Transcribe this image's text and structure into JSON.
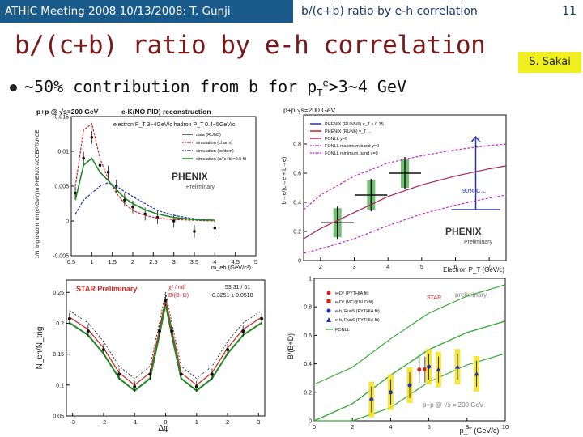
{
  "header": {
    "left": "ATHIC Meeting 2008 10/13/2008: T. Gunji",
    "center": "b/(c+b) ratio by e-h correlation",
    "page": "11"
  },
  "slide": {
    "title": "b/(c+b) ratio by e-h correlation",
    "author": "S. Sakai",
    "bullet": {
      "pre": "~50% contribution from b for p",
      "sub": "T",
      "sup": "e",
      "post": ">3~4 GeV"
    }
  },
  "colors": {
    "header_bg": "#1a5a8a",
    "title": "#7a1a1a",
    "author_bg": "#f0f020"
  },
  "panels": {
    "p1": {
      "header_left": "p+p @ √s=200 GeV",
      "header_right": "e-K(NO PID) reconstruction",
      "subtitle": "electron P_T 3~4GeV/c hadron P_T 0.4~5GeV/c",
      "legend": [
        "data (RUN5)",
        "simulation (charm)",
        "simulation (bottom)",
        "simulation (b/(c+b)=0.5 fit"
      ],
      "ylabel": "1/N_trig dN/dm_eh (c²/GeV) in PHENIX ACCEPTANCE",
      "xlabel": "m_eh (GeV/c²)",
      "logo": "PHENIX",
      "logo_sub": "Preliminary"
    },
    "p2": {
      "header": "p+p   √s=200 GeV",
      "legend": [
        "PHENIX (RUN5/6)  γ_T < 0.35",
        "PHENIX (RUN6) γ_T ...",
        "FONLL y=0",
        "FONLL maximum band y=0",
        "FONLL minimum band y=0"
      ],
      "ylabel": "b→e/(c→e + b→e)",
      "xlabel": "Electron P_T (GeV/c)",
      "annotation": "90% C.L",
      "logo": "PHENIX",
      "logo_sub": "Preliminary"
    },
    "p3": {
      "title": "STAR Preliminary",
      "stats": [
        {
          "label": "χ² / ndf",
          "value": "53.31 / 61"
        },
        {
          "label": "B/(B+D)",
          "value": "0.3251 ± 0.0518"
        }
      ],
      "ylabel": "N_ch/N_trig",
      "xlabel": "Δφ"
    },
    "p4": {
      "logo": "STAR",
      "logo_note": "preliminary",
      "legend": [
        "e-D⁰ (PYTHIA fit)",
        "e-D⁰ (MC@NLO fit)",
        "e-h, Run5 (PYTHIA fit)",
        "e-h, Run6 (PYTHIA fit)",
        "FONLL"
      ],
      "ylabel": "B/(B+D)",
      "xlabel": "p_T (GeV/c)",
      "footer": "p+p @ √s = 200 GeV"
    }
  },
  "chart_data": [
    {
      "type": "line",
      "title": "e-K(NO PID) reconstruction",
      "xlabel": "m_eh (GeV/c²)",
      "ylabel": "1/N_trig dN/dm_eh",
      "xlim": [
        0.5,
        5
      ],
      "ylim": [
        -0.005,
        0.015
      ],
      "x_ticks": [
        "0.5",
        "1",
        "1.5",
        "2",
        "2.5",
        "3",
        "3.5",
        "4",
        "4.5",
        "5"
      ],
      "y_ticks": [
        "-0.005",
        "0",
        "0.005",
        "0.01",
        "0.015"
      ],
      "series": [
        {
          "name": "data (RUN5)",
          "color": "#000000",
          "x": [
            0.6,
            0.8,
            1.0,
            1.2,
            1.4,
            1.6,
            1.8,
            2.0,
            2.3,
            2.6,
            3.0,
            3.5,
            4.0
          ],
          "y": [
            0.004,
            0.009,
            0.012,
            0.008,
            0.007,
            0.005,
            0.003,
            0.002,
            0.001,
            0.0005,
            0.0,
            -0.0015,
            -0.001
          ]
        },
        {
          "name": "simulation (charm)",
          "color": "#cc2222",
          "x": [
            0.6,
            0.8,
            1.0,
            1.2,
            1.4,
            1.6,
            1.8,
            2.0,
            2.3,
            2.6,
            3.0,
            3.5,
            4.0
          ],
          "y": [
            0.005,
            0.013,
            0.014,
            0.009,
            0.006,
            0.004,
            0.0025,
            0.0015,
            0.0008,
            0.0004,
            0.0002,
            0.0001,
            0.0
          ]
        },
        {
          "name": "simulation (bottom)",
          "color": "#2233aa",
          "x": [
            0.6,
            0.8,
            1.0,
            1.2,
            1.4,
            1.6,
            1.8,
            2.0,
            2.3,
            2.6,
            3.0,
            3.5,
            4.0
          ],
          "y": [
            0.001,
            0.003,
            0.004,
            0.005,
            0.0055,
            0.005,
            0.0042,
            0.0035,
            0.0025,
            0.0015,
            0.0008,
            0.0003,
            0.0001
          ]
        },
        {
          "name": "simulation (b/(c+b)=0.5 fit",
          "color": "#228822",
          "x": [
            0.6,
            0.8,
            1.0,
            1.2,
            1.4,
            1.6,
            1.8,
            2.0,
            2.3,
            2.6,
            3.0,
            3.5,
            4.0
          ],
          "y": [
            0.003,
            0.008,
            0.009,
            0.007,
            0.0058,
            0.0045,
            0.0033,
            0.0025,
            0.0016,
            0.001,
            0.0005,
            0.0002,
            0.0001
          ]
        }
      ]
    },
    {
      "type": "scatter",
      "title": "p+p √s=200 GeV",
      "xlabel": "Electron P_T (GeV/c)",
      "ylabel": "b→e/(c→e + b→e)",
      "xlim": [
        1.5,
        7.5
      ],
      "ylim": [
        0,
        1
      ],
      "x_ticks": [
        "2",
        "3",
        "4",
        "5",
        "6",
        "7"
      ],
      "y_ticks": [
        "0",
        "0.2",
        "0.4",
        "0.6",
        "0.8",
        "1"
      ],
      "series": [
        {
          "name": "PHENIX (RUN5/6)",
          "x": [
            2.5,
            3.5,
            4.5
          ],
          "y": [
            0.26,
            0.45,
            0.6
          ]
        },
        {
          "name": "FONLL y=0",
          "x": [
            1.5,
            2,
            3,
            4,
            5,
            6,
            7,
            7.5
          ],
          "y": [
            0.15,
            0.22,
            0.33,
            0.44,
            0.52,
            0.58,
            0.63,
            0.65
          ]
        },
        {
          "name": "FONLL maximum band y=0",
          "x": [
            1.5,
            2,
            3,
            4,
            5,
            6,
            7,
            7.5
          ],
          "y": [
            0.35,
            0.45,
            0.58,
            0.67,
            0.72,
            0.76,
            0.79,
            0.8
          ]
        },
        {
          "name": "FONLL minimum band y=0",
          "x": [
            1.5,
            2,
            3,
            4,
            5,
            6,
            7,
            7.5
          ],
          "y": [
            0.05,
            0.08,
            0.15,
            0.24,
            0.32,
            0.38,
            0.43,
            0.45
          ]
        }
      ],
      "annotation": "90% C.L"
    },
    {
      "type": "line",
      "title": "STAR Preliminary",
      "xlabel": "Δφ",
      "ylabel": "N_ch/N_trig",
      "xlim": [
        -3.2,
        3.2
      ],
      "ylim": [
        0.05,
        0.27
      ],
      "x_ticks": [
        "-3",
        "-2",
        "-1",
        "0",
        "1",
        "2",
        "3"
      ],
      "y_ticks": [
        "0.05",
        "0.1",
        "0.15",
        "0.2",
        "0.25"
      ],
      "series": [
        {
          "name": "fit",
          "x": [
            -3.1,
            -2.5,
            -2,
            -1.5,
            -1,
            -0.5,
            -0.2,
            0,
            0.2,
            0.5,
            1,
            1.5,
            2,
            2.5,
            3.1
          ],
          "y": [
            0.21,
            0.19,
            0.16,
            0.12,
            0.1,
            0.12,
            0.19,
            0.24,
            0.19,
            0.12,
            0.1,
            0.12,
            0.16,
            0.19,
            0.21
          ]
        }
      ],
      "stats": {
        "chi2_ndf": "53.31 / 61",
        "B_over_BD": "0.3251 ± 0.0518"
      }
    },
    {
      "type": "scatter",
      "title": "B/(B+D)",
      "xlabel": "p_T (GeV/c)",
      "ylabel": "B/(B+D)",
      "xlim": [
        0,
        10
      ],
      "ylim": [
        0,
        1
      ],
      "x_ticks": [
        "0",
        "2",
        "4",
        "6",
        "8",
        "10"
      ],
      "y_ticks": [
        "0",
        "0.2",
        "0.4",
        "0.6",
        "0.8",
        "1"
      ],
      "series": [
        {
          "name": "e-D⁰ (PYTHIA fit)",
          "x": [
            5.5
          ],
          "y": [
            0.36
          ]
        },
        {
          "name": "e-D⁰ (MC@NLO fit)",
          "x": [
            5.8
          ],
          "y": [
            0.36
          ]
        },
        {
          "name": "e-h, Run5 (PYTHIA fit)",
          "x": [
            3,
            4,
            5,
            6
          ],
          "y": [
            0.15,
            0.2,
            0.25,
            0.38
          ]
        },
        {
          "name": "e-h, Run6 (PYTHIA fit)",
          "x": [
            6.5,
            7.5,
            8.5
          ],
          "y": [
            0.36,
            0.38,
            0.33
          ]
        },
        {
          "name": "FONLL",
          "x": [
            0,
            2,
            4,
            6,
            8,
            10
          ],
          "y": [
            0.0,
            0.12,
            0.32,
            0.5,
            0.62,
            0.7
          ]
        }
      ]
    }
  ]
}
